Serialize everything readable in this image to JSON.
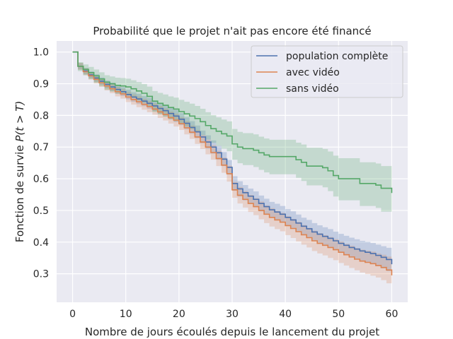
{
  "chart_data": {
    "type": "line",
    "step": true,
    "title": "Probabilité que le projet n'ait pas encore été financé",
    "xlabel": "Nombre de jours écoulés depuis le lancement du projet",
    "ylabel_prefix": "Fonction de survie ",
    "ylabel_math": "P(t > T)",
    "xlim": [
      -3,
      63
    ],
    "ylim": [
      0.21,
      1.035
    ],
    "xticks": [
      0,
      10,
      20,
      30,
      40,
      50,
      60
    ],
    "yticks": [
      0.3,
      0.4,
      0.5,
      0.6,
      0.7,
      0.8,
      0.9,
      1.0
    ],
    "ytick_labels": [
      "0.3",
      "0.4",
      "0.5",
      "0.6",
      "0.7",
      "0.8",
      "0.9",
      "1.0"
    ],
    "grid": true,
    "legend_position": "top-right",
    "confidence_bands": true,
    "colors": {
      "background": "#eaeaf2",
      "grid": "#ffffff"
    },
    "series": [
      {
        "name": "population complète",
        "color": "#4c72b0",
        "x": [
          0,
          1,
          2,
          3,
          4,
          5,
          6,
          7,
          8,
          9,
          10,
          11,
          12,
          13,
          14,
          15,
          16,
          17,
          18,
          19,
          20,
          21,
          22,
          23,
          24,
          25,
          26,
          27,
          28,
          29,
          30,
          31,
          32,
          33,
          34,
          35,
          36,
          37,
          38,
          39,
          40,
          41,
          42,
          43,
          44,
          45,
          46,
          47,
          48,
          49,
          50,
          51,
          52,
          53,
          54,
          55,
          56,
          57,
          58,
          59,
          60
        ],
        "values": [
          1.0,
          0.955,
          0.94,
          0.928,
          0.918,
          0.908,
          0.898,
          0.89,
          0.882,
          0.875,
          0.866,
          0.858,
          0.852,
          0.845,
          0.838,
          0.83,
          0.822,
          0.815,
          0.806,
          0.798,
          0.788,
          0.775,
          0.762,
          0.748,
          0.732,
          0.716,
          0.7,
          0.682,
          0.662,
          0.636,
          0.585,
          0.568,
          0.556,
          0.545,
          0.535,
          0.522,
          0.512,
          0.502,
          0.495,
          0.488,
          0.478,
          0.47,
          0.46,
          0.45,
          0.442,
          0.432,
          0.425,
          0.418,
          0.412,
          0.404,
          0.396,
          0.39,
          0.383,
          0.378,
          0.372,
          0.368,
          0.364,
          0.358,
          0.352,
          0.345,
          0.33
        ],
        "ci_lower": [
          1.0,
          0.945,
          0.93,
          0.917,
          0.906,
          0.896,
          0.886,
          0.877,
          0.868,
          0.861,
          0.851,
          0.843,
          0.836,
          0.829,
          0.821,
          0.813,
          0.805,
          0.797,
          0.788,
          0.779,
          0.769,
          0.756,
          0.742,
          0.728,
          0.712,
          0.695,
          0.679,
          0.66,
          0.64,
          0.613,
          0.562,
          0.544,
          0.532,
          0.521,
          0.51,
          0.497,
          0.487,
          0.477,
          0.469,
          0.462,
          0.452,
          0.443,
          0.433,
          0.423,
          0.414,
          0.404,
          0.397,
          0.389,
          0.383,
          0.375,
          0.366,
          0.36,
          0.352,
          0.347,
          0.34,
          0.335,
          0.331,
          0.324,
          0.317,
          0.308,
          0.29
        ],
        "ci_upper": [
          1.0,
          0.965,
          0.95,
          0.939,
          0.93,
          0.92,
          0.91,
          0.903,
          0.896,
          0.889,
          0.881,
          0.873,
          0.868,
          0.861,
          0.855,
          0.847,
          0.839,
          0.833,
          0.824,
          0.817,
          0.807,
          0.794,
          0.782,
          0.768,
          0.752,
          0.737,
          0.721,
          0.704,
          0.684,
          0.659,
          0.608,
          0.592,
          0.58,
          0.569,
          0.56,
          0.547,
          0.537,
          0.527,
          0.521,
          0.514,
          0.504,
          0.497,
          0.487,
          0.477,
          0.47,
          0.46,
          0.453,
          0.447,
          0.441,
          0.433,
          0.426,
          0.42,
          0.414,
          0.409,
          0.404,
          0.401,
          0.397,
          0.392,
          0.387,
          0.382,
          0.37
        ]
      },
      {
        "name": "avec vidéo",
        "color": "#dd8452",
        "x": [
          0,
          1,
          2,
          3,
          4,
          5,
          6,
          7,
          8,
          9,
          10,
          11,
          12,
          13,
          14,
          15,
          16,
          17,
          18,
          19,
          20,
          21,
          22,
          23,
          24,
          25,
          26,
          27,
          28,
          29,
          30,
          31,
          32,
          33,
          34,
          35,
          36,
          37,
          38,
          39,
          40,
          41,
          42,
          43,
          44,
          45,
          46,
          47,
          48,
          49,
          50,
          51,
          52,
          53,
          54,
          55,
          56,
          57,
          58,
          59,
          60
        ],
        "values": [
          1.0,
          0.955,
          0.938,
          0.925,
          0.914,
          0.903,
          0.893,
          0.884,
          0.875,
          0.868,
          0.858,
          0.85,
          0.843,
          0.835,
          0.828,
          0.82,
          0.811,
          0.803,
          0.793,
          0.785,
          0.774,
          0.761,
          0.747,
          0.732,
          0.716,
          0.7,
          0.683,
          0.664,
          0.643,
          0.616,
          0.565,
          0.548,
          0.535,
          0.522,
          0.512,
          0.5,
          0.488,
          0.478,
          0.47,
          0.463,
          0.452,
          0.443,
          0.433,
          0.423,
          0.414,
          0.404,
          0.396,
          0.39,
          0.383,
          0.376,
          0.368,
          0.36,
          0.353,
          0.346,
          0.34,
          0.336,
          0.332,
          0.326,
          0.32,
          0.312,
          0.295
        ],
        "ci_lower": [
          1.0,
          0.944,
          0.927,
          0.913,
          0.901,
          0.89,
          0.879,
          0.87,
          0.86,
          0.853,
          0.842,
          0.834,
          0.826,
          0.818,
          0.81,
          0.802,
          0.792,
          0.784,
          0.774,
          0.765,
          0.754,
          0.74,
          0.726,
          0.71,
          0.694,
          0.677,
          0.66,
          0.64,
          0.619,
          0.591,
          0.54,
          0.522,
          0.509,
          0.495,
          0.485,
          0.472,
          0.46,
          0.449,
          0.441,
          0.434,
          0.422,
          0.413,
          0.402,
          0.392,
          0.383,
          0.372,
          0.364,
          0.358,
          0.35,
          0.343,
          0.334,
          0.326,
          0.318,
          0.311,
          0.304,
          0.299,
          0.294,
          0.288,
          0.28,
          0.27,
          0.25
        ],
        "ci_upper": [
          1.0,
          0.966,
          0.949,
          0.937,
          0.927,
          0.916,
          0.907,
          0.898,
          0.89,
          0.883,
          0.874,
          0.866,
          0.86,
          0.852,
          0.846,
          0.838,
          0.83,
          0.822,
          0.812,
          0.805,
          0.794,
          0.782,
          0.768,
          0.754,
          0.738,
          0.723,
          0.706,
          0.688,
          0.667,
          0.641,
          0.59,
          0.574,
          0.561,
          0.549,
          0.539,
          0.528,
          0.516,
          0.507,
          0.499,
          0.492,
          0.482,
          0.473,
          0.464,
          0.454,
          0.445,
          0.436,
          0.428,
          0.422,
          0.416,
          0.409,
          0.402,
          0.394,
          0.388,
          0.381,
          0.376,
          0.373,
          0.37,
          0.364,
          0.36,
          0.354,
          0.34
        ]
      },
      {
        "name": "sans vidéo",
        "color": "#55a868",
        "x": [
          0,
          1,
          2,
          3,
          4,
          5,
          6,
          7,
          8,
          9,
          10,
          11,
          12,
          13,
          14,
          15,
          16,
          17,
          18,
          19,
          20,
          21,
          22,
          23,
          24,
          25,
          26,
          27,
          28,
          29,
          30,
          31,
          32,
          33,
          34,
          35,
          36,
          37,
          38,
          39,
          40,
          41,
          42,
          43,
          44,
          45,
          46,
          47,
          48,
          49,
          50,
          51,
          52,
          53,
          54,
          55,
          56,
          57,
          58,
          59,
          60
        ],
        "values": [
          1.0,
          0.955,
          0.945,
          0.935,
          0.925,
          0.915,
          0.905,
          0.9,
          0.895,
          0.893,
          0.89,
          0.884,
          0.877,
          0.87,
          0.86,
          0.845,
          0.838,
          0.832,
          0.825,
          0.82,
          0.812,
          0.805,
          0.798,
          0.79,
          0.78,
          0.768,
          0.758,
          0.75,
          0.742,
          0.735,
          0.71,
          0.7,
          0.695,
          0.695,
          0.69,
          0.682,
          0.675,
          0.67,
          0.67,
          0.67,
          0.67,
          0.67,
          0.66,
          0.652,
          0.64,
          0.64,
          0.64,
          0.635,
          0.625,
          0.61,
          0.6,
          0.6,
          0.6,
          0.6,
          0.585,
          0.585,
          0.585,
          0.58,
          0.57,
          0.57,
          0.555
        ],
        "ci_lower": [
          1.0,
          0.94,
          0.927,
          0.915,
          0.903,
          0.892,
          0.881,
          0.875,
          0.869,
          0.866,
          0.862,
          0.855,
          0.847,
          0.839,
          0.828,
          0.811,
          0.803,
          0.796,
          0.788,
          0.782,
          0.773,
          0.765,
          0.757,
          0.748,
          0.737,
          0.724,
          0.713,
          0.704,
          0.695,
          0.687,
          0.66,
          0.649,
          0.643,
          0.643,
          0.637,
          0.628,
          0.62,
          0.614,
          0.614,
          0.614,
          0.614,
          0.614,
          0.603,
          0.593,
          0.579,
          0.579,
          0.579,
          0.573,
          0.561,
          0.544,
          0.532,
          0.532,
          0.532,
          0.532,
          0.514,
          0.514,
          0.514,
          0.508,
          0.496,
          0.496,
          0.49
        ],
        "ci_upper": [
          1.0,
          0.968,
          0.961,
          0.953,
          0.945,
          0.936,
          0.927,
          0.923,
          0.919,
          0.918,
          0.916,
          0.911,
          0.905,
          0.899,
          0.891,
          0.877,
          0.871,
          0.866,
          0.86,
          0.856,
          0.849,
          0.843,
          0.837,
          0.83,
          0.821,
          0.81,
          0.801,
          0.794,
          0.787,
          0.781,
          0.757,
          0.748,
          0.744,
          0.744,
          0.74,
          0.733,
          0.727,
          0.723,
          0.723,
          0.723,
          0.723,
          0.723,
          0.714,
          0.708,
          0.698,
          0.698,
          0.698,
          0.694,
          0.686,
          0.673,
          0.665,
          0.665,
          0.665,
          0.665,
          0.652,
          0.652,
          0.652,
          0.648,
          0.64,
          0.64,
          0.615
        ]
      }
    ]
  }
}
